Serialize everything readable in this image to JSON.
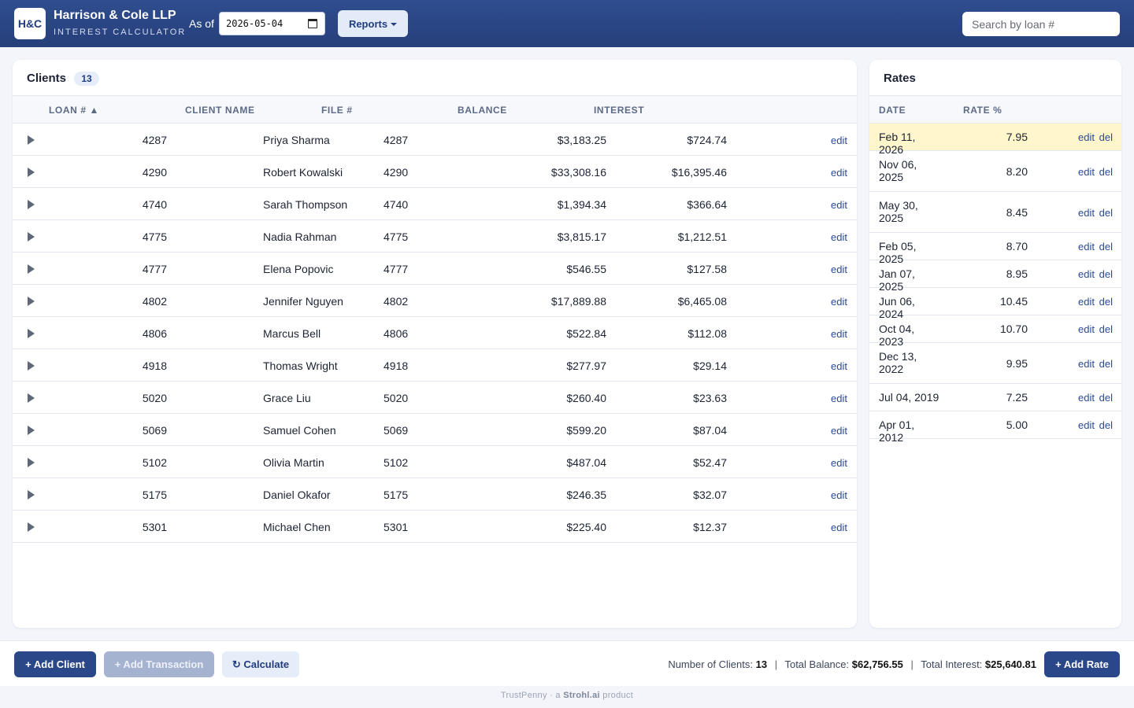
{
  "header": {
    "logo": "H&C",
    "firm_name": "Harrison & Cole LLP",
    "subtitle": "INTEREST CALCULATOR",
    "as_of_label": "As of",
    "as_of_date": "2026-05-04",
    "reports_label": "Reports",
    "search_placeholder": "Search by loan #"
  },
  "clients": {
    "title": "Clients",
    "count": "13",
    "columns": [
      "LOAN # ▲",
      "CLIENT NAME",
      "FILE #",
      "BALANCE",
      "INTEREST"
    ],
    "edit_label": "edit",
    "rows": [
      {
        "loan": "4287",
        "name": "Priya Sharma",
        "file": "4287",
        "balance": "$3,183.25",
        "interest": "$724.74"
      },
      {
        "loan": "4290",
        "name": "Robert Kowalski",
        "file": "4290",
        "balance": "$33,308.16",
        "interest": "$16,395.46"
      },
      {
        "loan": "4740",
        "name": "Sarah Thompson",
        "file": "4740",
        "balance": "$1,394.34",
        "interest": "$366.64"
      },
      {
        "loan": "4775",
        "name": "Nadia Rahman",
        "file": "4775",
        "balance": "$3,815.17",
        "interest": "$1,212.51"
      },
      {
        "loan": "4777",
        "name": "Elena Popovic",
        "file": "4777",
        "balance": "$546.55",
        "interest": "$127.58"
      },
      {
        "loan": "4802",
        "name": "Jennifer Nguyen",
        "file": "4802",
        "balance": "$17,889.88",
        "interest": "$6,465.08"
      },
      {
        "loan": "4806",
        "name": "Marcus Bell",
        "file": "4806",
        "balance": "$522.84",
        "interest": "$112.08"
      },
      {
        "loan": "4918",
        "name": "Thomas Wright",
        "file": "4918",
        "balance": "$277.97",
        "interest": "$29.14"
      },
      {
        "loan": "5020",
        "name": "Grace Liu",
        "file": "5020",
        "balance": "$260.40",
        "interest": "$23.63"
      },
      {
        "loan": "5069",
        "name": "Samuel Cohen",
        "file": "5069",
        "balance": "$599.20",
        "interest": "$87.04"
      },
      {
        "loan": "5102",
        "name": "Olivia Martin",
        "file": "5102",
        "balance": "$487.04",
        "interest": "$52.47"
      },
      {
        "loan": "5175",
        "name": "Daniel Okafor",
        "file": "5175",
        "balance": "$246.35",
        "interest": "$32.07"
      },
      {
        "loan": "5301",
        "name": "Michael Chen",
        "file": "5301",
        "balance": "$225.40",
        "interest": "$12.37"
      }
    ]
  },
  "rates": {
    "title": "Rates",
    "columns": [
      "DATE",
      "RATE %"
    ],
    "edit_label": "edit",
    "del_label": "del",
    "rows": [
      {
        "date": "Feb 11, 2026",
        "rate": "7.95",
        "active": true
      },
      {
        "date": "Nov 06, 2025",
        "rate": "8.20"
      },
      {
        "date": "May 30, 2025",
        "rate": "8.45"
      },
      {
        "date": "Feb 05, 2025",
        "rate": "8.70"
      },
      {
        "date": "Jan 07, 2025",
        "rate": "8.95"
      },
      {
        "date": "Jun 06, 2024",
        "rate": "10.45"
      },
      {
        "date": "Oct 04, 2023",
        "rate": "10.70"
      },
      {
        "date": "Dec 13, 2022",
        "rate": "9.95"
      },
      {
        "date": "Jul 04, 2019",
        "rate": "7.25"
      },
      {
        "date": "Apr 01, 2012",
        "rate": "5.00"
      }
    ]
  },
  "footer": {
    "add_client": "+ Add Client",
    "add_transaction": "+ Add Transaction",
    "calculate": "↻ Calculate",
    "add_rate": "+ Add Rate",
    "num_clients_label": "Number of Clients:",
    "num_clients": "13",
    "total_balance_label": "Total Balance:",
    "total_balance": "$62,756.55",
    "total_interest_label": "Total Interest:",
    "total_interest": "$25,640.81",
    "separator": "|",
    "credit_prefix": "TrustPenny · a",
    "credit_brand": "Strohl.ai",
    "credit_suffix": "product"
  }
}
